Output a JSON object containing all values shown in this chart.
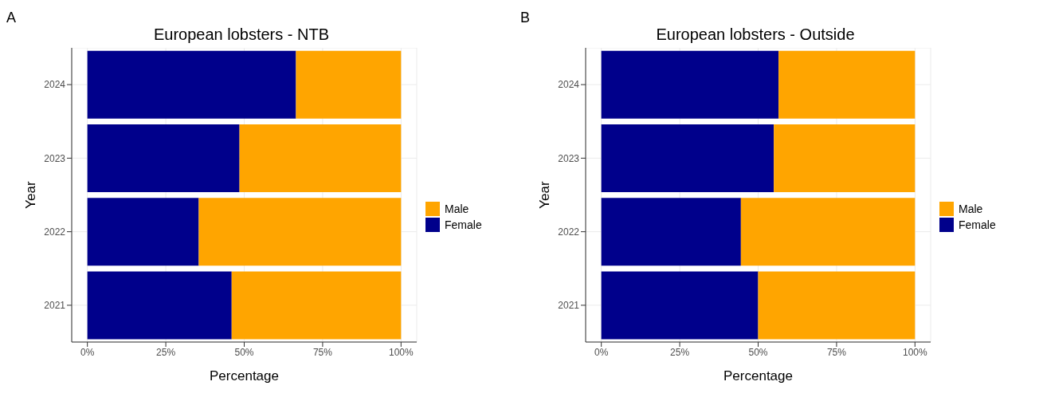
{
  "chart_data": [
    {
      "type": "bar",
      "orientation": "horizontal",
      "stacked": true,
      "title": "European lobsters - NTB",
      "xlabel": "Percentage",
      "ylabel": "Year",
      "annotations": [
        "A"
      ],
      "categories": [
        "2024",
        "2023",
        "2022",
        "2021"
      ],
      "series": [
        {
          "name": "Female",
          "color": "#00008b",
          "values": [
            66.5,
            48.5,
            35.5,
            46
          ]
        },
        {
          "name": "Male",
          "color": "#ffa500",
          "values": [
            33.5,
            51.5,
            64.5,
            54
          ]
        }
      ],
      "xlim": [
        -5,
        105
      ],
      "xticks": [
        {
          "value": 0,
          "label": "0%"
        },
        {
          "value": 25,
          "label": "25%"
        },
        {
          "value": 50,
          "label": "50%"
        },
        {
          "value": 75,
          "label": "75%"
        },
        {
          "value": 100,
          "label": "100%"
        }
      ],
      "grid": true,
      "legend": "right"
    },
    {
      "type": "bar",
      "orientation": "horizontal",
      "stacked": true,
      "title": "European lobsters - Outside",
      "xlabel": "Percentage",
      "ylabel": "Year",
      "annotations": [
        "B"
      ],
      "categories": [
        "2024",
        "2023",
        "2022",
        "2021"
      ],
      "series": [
        {
          "name": "Female",
          "color": "#00008b",
          "values": [
            56.5,
            55,
            44.5,
            50
          ]
        },
        {
          "name": "Male",
          "color": "#ffa500",
          "values": [
            43.5,
            45,
            55.5,
            50
          ]
        }
      ],
      "xlim": [
        -5,
        105
      ],
      "xticks": [
        {
          "value": 0,
          "label": "0%"
        },
        {
          "value": 25,
          "label": "25%"
        },
        {
          "value": 50,
          "label": "50%"
        },
        {
          "value": 75,
          "label": "75%"
        },
        {
          "value": 100,
          "label": "100%"
        }
      ],
      "grid": true,
      "legend": "right"
    }
  ]
}
